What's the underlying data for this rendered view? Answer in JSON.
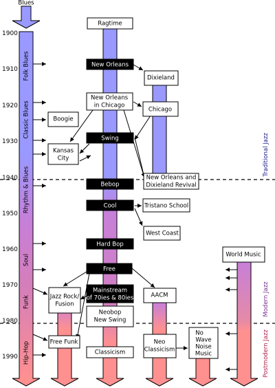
{
  "years": [
    "1900",
    "1910",
    "1920",
    "1930",
    "1940",
    "1950",
    "1960",
    "1970",
    "1980",
    "1990"
  ],
  "top_label": "Blues",
  "blues_column": [
    "Folk Blues",
    "Classic Blues",
    "Rhythm & Blues",
    "Soul",
    "Funk",
    "Hip-Hop"
  ],
  "nodes": {
    "ragtime": "Ragtime",
    "new_orleans": "New Orleans",
    "dixieland": "Dixieland",
    "new_orleans_chicago_1": "New Orleans",
    "new_orleans_chicago_2": "in Chicago",
    "chicago": "Chicago",
    "boogie": "Boogie",
    "kansas_city_1": "Kansas",
    "kansas_city_2": "City",
    "swing": "Swing",
    "bebop": "Bebop",
    "revival_1": "New Orleans and",
    "revival_2": "Dixieland Revival",
    "cool": "Cool",
    "tristano": "Tristano School",
    "west_coast": "West Coast",
    "hard_bop": "Hard Bop",
    "world_music": "World Music",
    "free": "Free",
    "mainstream_1": "Mainstream",
    "mainstream_2": "of 70ies & 80ies",
    "jazz_rock_1": "Jazz Rock/",
    "jazz_rock_2": "Fusion",
    "aacm": "AACM",
    "neobop_1": "Neobop",
    "neobop_2": "New Swing",
    "free_funk": "Free Funk",
    "classicism": "Classicism",
    "neo_classicism_1": "Neo",
    "neo_classicism_2": "Classicism",
    "no_wave_1": "No",
    "no_wave_2": "Wave",
    "no_wave_3": "Noise",
    "no_wave_4": "Music"
  },
  "eras": {
    "traditional": "Traditional Jazz",
    "modern": "Modern Jazz",
    "postmodern": "Postmodern Jazz"
  },
  "colors": {
    "blue": "#9999ff",
    "purple": "#c77fd8",
    "salmon": "#ff9090",
    "traditional_text": "#1c1c8c",
    "modern_text": "#7a2e8e",
    "postmodern_text": "#b3204a"
  }
}
